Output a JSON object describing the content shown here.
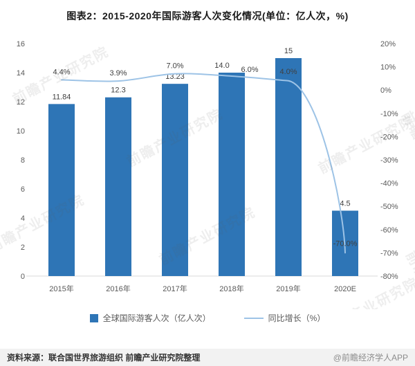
{
  "title": "图表2：2015-2020年国际游客人次变化情况(单位：亿人次，%)",
  "chart_data": {
    "type": "bar",
    "title": "图表2：2015-2020年国际游客人次变化情况(单位：亿人次，%)",
    "categories": [
      "2015年",
      "2016年",
      "2017年",
      "2018年",
      "2019年",
      "2020E"
    ],
    "series": [
      {
        "name": "全球国际游客人次（亿人次）",
        "type": "bar",
        "axis": "left",
        "color": "#2e75b6",
        "values": [
          11.84,
          12.3,
          13.23,
          14.0,
          15,
          4.5
        ],
        "labels": [
          "11.84",
          "12.3",
          "13.23",
          "14.0",
          "15",
          "4.5"
        ]
      },
      {
        "name": "同比增长（%）",
        "type": "line",
        "axis": "right",
        "color": "#9dc3e6",
        "values": [
          4.4,
          3.9,
          7.0,
          6.0,
          4.0,
          -70.0
        ],
        "labels": [
          "4.4%",
          "3.9%",
          "7.0%",
          "6.0%",
          "4.0%",
          "-70.0%"
        ]
      }
    ],
    "left_axis": {
      "min": 0,
      "max": 16,
      "step": 2,
      "ticks": [
        "0",
        "2",
        "4",
        "6",
        "8",
        "10",
        "12",
        "14",
        "16"
      ]
    },
    "right_axis": {
      "min": -80,
      "max": 20,
      "step": 10,
      "ticks": [
        "-80%",
        "-70%",
        "-60%",
        "-50%",
        "-40%",
        "-30%",
        "-20%",
        "-10%",
        "0%",
        "10%",
        "20%"
      ]
    },
    "grid": false,
    "legend_position": "bottom"
  },
  "watermark": {
    "text": "前瞻产业研究院"
  },
  "footer": {
    "source": "资料来源：联合国世界旅游组织 前瞻产业研究院整理",
    "credit": "@前瞻经济学人APP"
  },
  "colors": {
    "bar": "#2e75b6",
    "line": "#9dc3e6",
    "axis_text": "#595959",
    "data_label": "#404040",
    "axis_line": "#d9d9d9",
    "footer_bg": "#f2f2f2"
  }
}
